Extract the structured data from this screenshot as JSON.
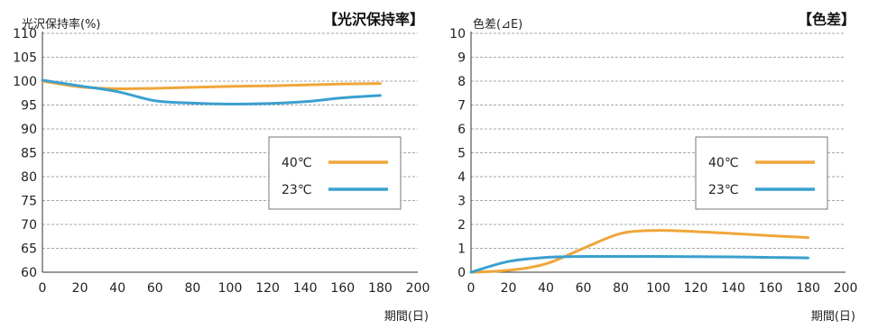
{
  "colors": {
    "series_40": "#f0a63a",
    "series_23": "#3aa0cf",
    "grid": "#8a8a8a",
    "axis": "#333333",
    "legend_border": "#777777"
  },
  "chart_data": [
    {
      "type": "line",
      "title": "【光沢保持率】",
      "ylabel": "光沢保持率(%)",
      "xlabel": "期間(日)",
      "xlim": [
        0,
        200
      ],
      "ylim": [
        60,
        110
      ],
      "xticks": [
        0,
        20,
        40,
        60,
        80,
        100,
        120,
        140,
        160,
        180,
        200
      ],
      "yticks": [
        60,
        65,
        70,
        75,
        80,
        85,
        90,
        95,
        100,
        105,
        110
      ],
      "grid": true,
      "legend_position": "center-right",
      "series": [
        {
          "name": "40℃",
          "color": "#f0a63a",
          "x": [
            0,
            20,
            40,
            60,
            80,
            100,
            120,
            140,
            160,
            180
          ],
          "y": [
            100,
            98.8,
            98.4,
            98.5,
            98.7,
            98.9,
            99.0,
            99.2,
            99.4,
            99.5
          ]
        },
        {
          "name": "23℃",
          "color": "#3aa0cf",
          "x": [
            0,
            20,
            40,
            60,
            80,
            100,
            120,
            140,
            160,
            180
          ],
          "y": [
            100.2,
            99.0,
            97.8,
            95.9,
            95.4,
            95.2,
            95.3,
            95.7,
            96.5,
            97.0
          ]
        }
      ]
    },
    {
      "type": "line",
      "title": "【色差】",
      "ylabel": "色差(⊿E)",
      "xlabel": "期間(日)",
      "xlim": [
        0,
        200
      ],
      "ylim": [
        0,
        10
      ],
      "xticks": [
        0,
        20,
        40,
        60,
        80,
        100,
        120,
        140,
        160,
        180,
        200
      ],
      "yticks": [
        0,
        1,
        2,
        3,
        4,
        5,
        6,
        7,
        8,
        9,
        10
      ],
      "grid": true,
      "legend_position": "center-right",
      "series": [
        {
          "name": "40℃",
          "color": "#f0a63a",
          "x": [
            0,
            20,
            40,
            60,
            80,
            100,
            120,
            140,
            160,
            180
          ],
          "y": [
            0,
            0.08,
            0.35,
            1.0,
            1.62,
            1.75,
            1.7,
            1.62,
            1.53,
            1.45
          ]
        },
        {
          "name": "23℃",
          "color": "#3aa0cf",
          "x": [
            0,
            20,
            40,
            60,
            80,
            100,
            120,
            140,
            160,
            180
          ],
          "y": [
            0,
            0.45,
            0.62,
            0.66,
            0.66,
            0.66,
            0.65,
            0.64,
            0.62,
            0.6
          ]
        }
      ]
    }
  ]
}
